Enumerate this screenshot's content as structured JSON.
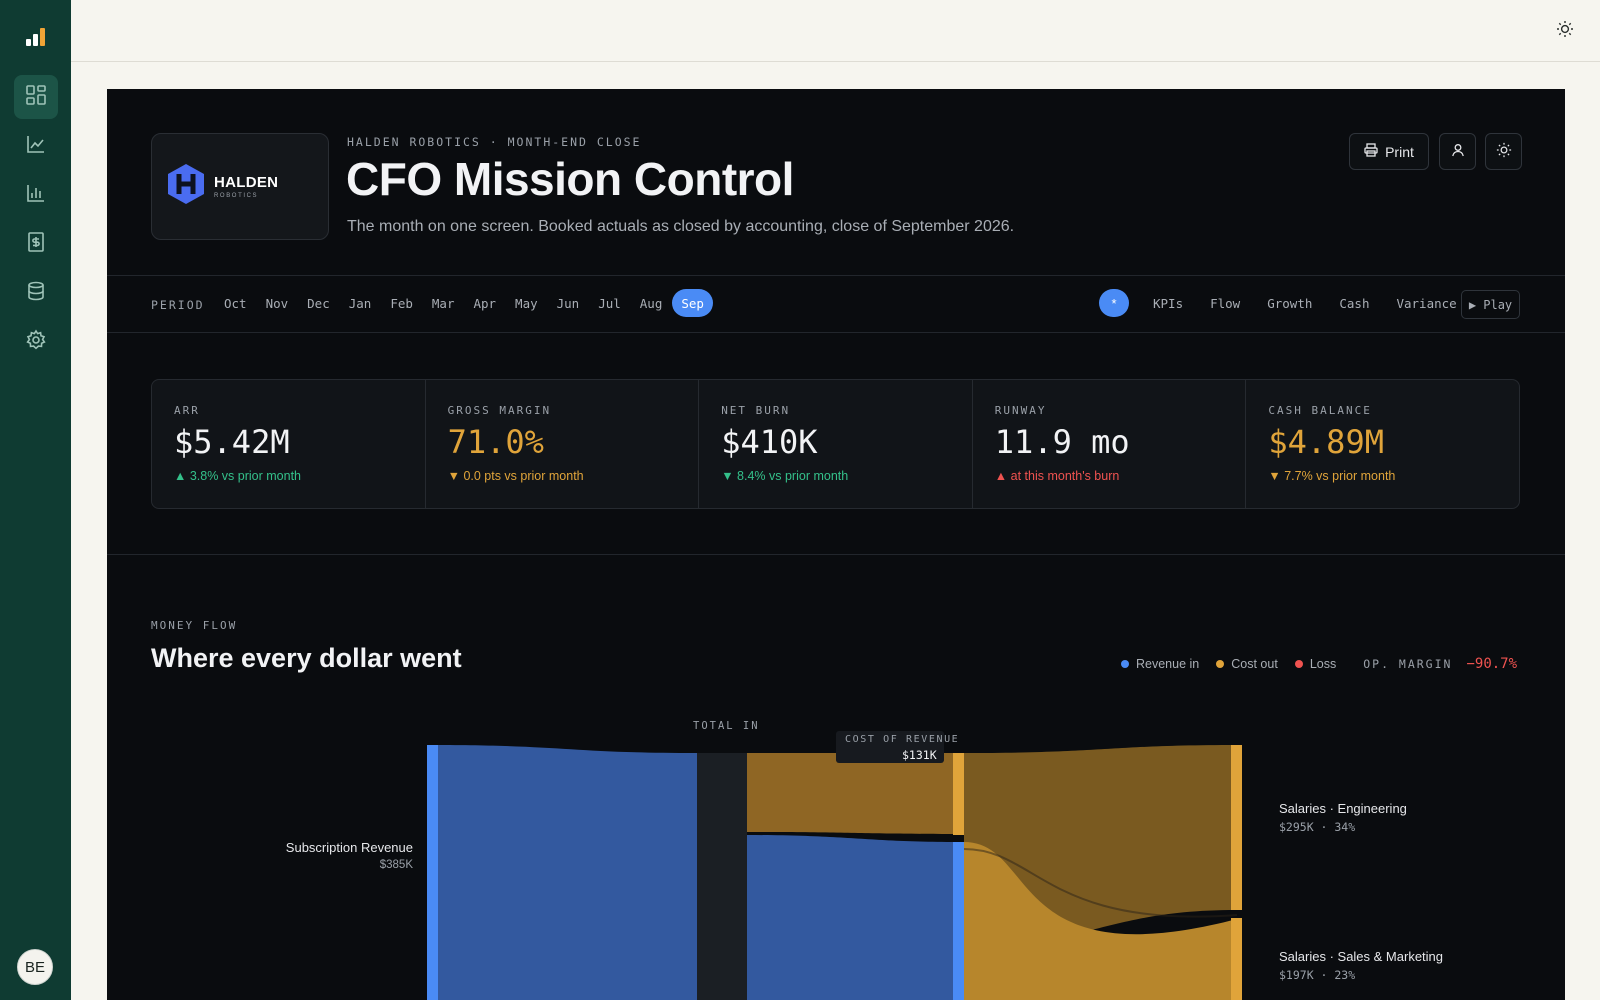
{
  "sidebar": {
    "logo_icon": "bar-chart-logo-icon",
    "items": [
      {
        "name": "dashboard",
        "icon": "grid-icon",
        "active": true
      },
      {
        "name": "trends",
        "icon": "line-chart-icon",
        "active": false
      },
      {
        "name": "reports",
        "icon": "bar-chart-icon",
        "active": false
      },
      {
        "name": "invoices",
        "icon": "receipt-icon",
        "active": false
      },
      {
        "name": "data",
        "icon": "database-icon",
        "active": false
      },
      {
        "name": "settings",
        "icon": "gear-icon",
        "active": false
      }
    ],
    "avatar_initials": "BE"
  },
  "header": {
    "logo_name": "HALDEN",
    "logo_sub": "ROBOTICS",
    "eyebrow": "HALDEN ROBOTICS · MONTH-END CLOSE",
    "title": "CFO Mission Control",
    "subtitle": "The month on one screen. Booked actuals as closed by accounting, close of September 2026.",
    "print_label": "Print"
  },
  "period": {
    "label": "PERIOD",
    "months": [
      "Oct",
      "Nov",
      "Dec",
      "Jan",
      "Feb",
      "Mar",
      "Apr",
      "May",
      "Jun",
      "Jul",
      "Aug",
      "Sep"
    ],
    "selected": "Sep",
    "all_symbol": "*",
    "sections": [
      "KPIs",
      "Flow",
      "Growth",
      "Cash",
      "Variance"
    ],
    "play_label": "▶ Play"
  },
  "kpis": [
    {
      "label": "ARR",
      "value": "$5.42M",
      "delta": "▲ 3.8% vs prior month",
      "value_color": "#f2f3f5",
      "delta_color": "#34c08a"
    },
    {
      "label": "GROSS MARGIN",
      "value": "71.0%",
      "delta": "▼ 0.0 pts vs prior month",
      "value_color": "#e0a43a",
      "delta_color": "#e0a43a"
    },
    {
      "label": "NET BURN",
      "value": "$410K",
      "delta": "▼ 8.4% vs prior month",
      "value_color": "#f2f3f5",
      "delta_color": "#34c08a"
    },
    {
      "label": "RUNWAY",
      "value": "11.9 mo",
      "delta": "▲ at this month's burn",
      "value_color": "#f2f3f5",
      "delta_color": "#ef5350"
    },
    {
      "label": "CASH BALANCE",
      "value": "$4.89M",
      "delta": "▼ 7.7% vs prior month",
      "value_color": "#e0a43a",
      "delta_color": "#e0a43a"
    }
  ],
  "money_flow": {
    "eyebrow": "MONEY FLOW",
    "title": "Where every dollar went",
    "legend": [
      {
        "label": "Revenue in",
        "color": "#4a8bf5"
      },
      {
        "label": "Cost out",
        "color": "#e0a43a"
      },
      {
        "label": "Loss",
        "color": "#ef5350"
      }
    ],
    "op_margin_label": "OP. MARGIN",
    "op_margin_value": "−90.7%",
    "total_in_label": "TOTAL IN",
    "cost_of_revenue_label": "COST OF REVENUE",
    "cost_of_revenue_value": "$131K",
    "nodes": {
      "subscription": {
        "label": "Subscription Revenue",
        "value": "$385K"
      },
      "sal_eng": {
        "label": "Salaries · Engineering",
        "value": "$295K · 34%"
      },
      "sal_sm": {
        "label": "Salaries · Sales & Marketing",
        "value": "$197K · 23%"
      }
    }
  },
  "colors": {
    "revenue": "#4a8bf5",
    "revenue_flow": "#33599f",
    "cost": "#e0a43a",
    "cost_flow": "#a8762a",
    "sidebar": "#0f3b32"
  }
}
